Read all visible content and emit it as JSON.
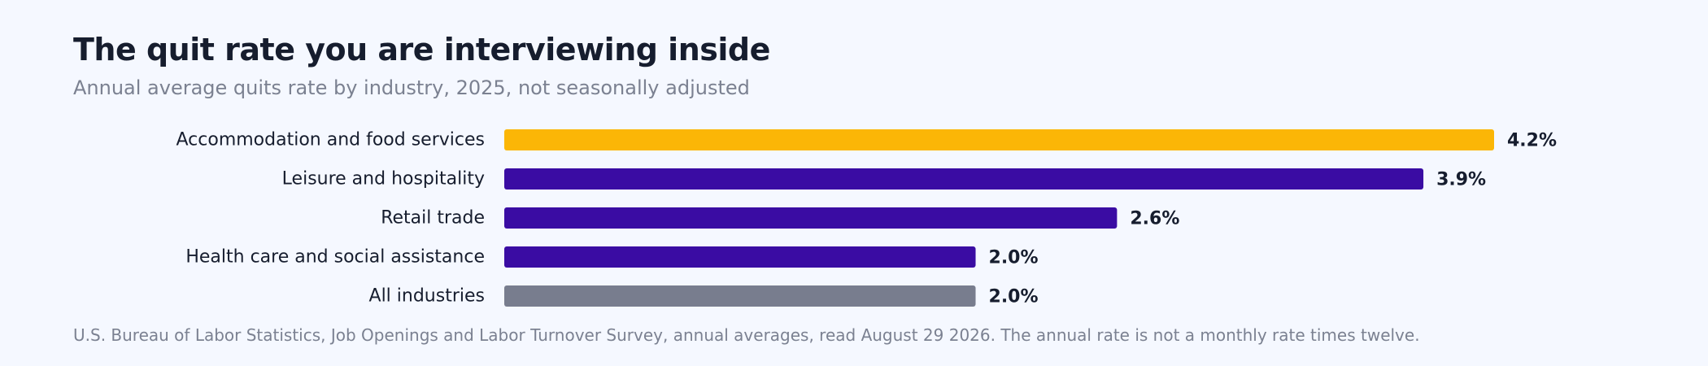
{
  "chart_data": {
    "type": "bar",
    "orientation": "horizontal",
    "title": "The quit rate you are interviewing inside",
    "subtitle": "Annual average quits rate by industry, 2025, not seasonally adjusted",
    "categories": [
      "Accommodation and food services",
      "Leisure and hospitality",
      "Retail trade",
      "Health care and social assistance",
      "All industries"
    ],
    "values": [
      4.2,
      3.9,
      2.6,
      2.0,
      2.0
    ],
    "value_labels": [
      "4.2%",
      "3.9%",
      "2.6%",
      "2.0%",
      "2.0%"
    ],
    "unit": "%",
    "xlim": [
      0,
      4.2
    ],
    "grid": false,
    "legend": "none",
    "colors": [
      "#fbb606",
      "#3a0ca3",
      "#3a0ca3",
      "#3a0ca3",
      "#787d8e"
    ],
    "source": "U.S. Bureau of Labor Statistics, Job Openings and Labor Turnover Survey, annual averages, read August 29 2026. The annual rate is not a monthly rate times twelve."
  }
}
